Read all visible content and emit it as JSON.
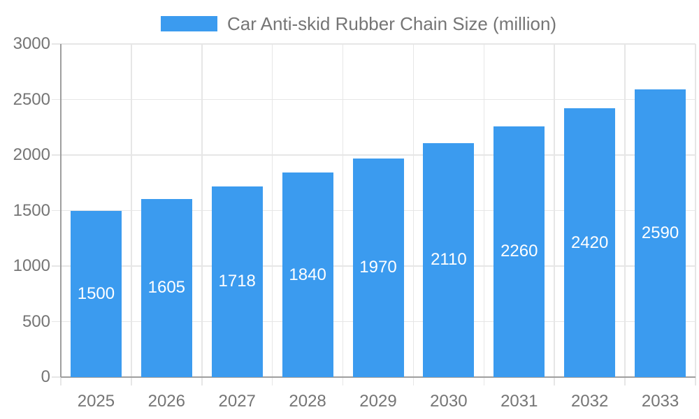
{
  "chart_data": {
    "type": "bar",
    "legend": "Car Anti-skid Rubber Chain Size (million)",
    "legend_position": "top-center",
    "categories": [
      "2025",
      "2026",
      "2027",
      "2028",
      "2029",
      "2030",
      "2031",
      "2032",
      "2033"
    ],
    "values": [
      1500,
      1605,
      1718,
      1840,
      1970,
      2110,
      2260,
      2420,
      2590
    ],
    "xlabel": "",
    "ylabel": "",
    "ylim": [
      0,
      3000
    ],
    "ytick_step": 500,
    "ytick_labels": [
      "0",
      "500",
      "1000",
      "1500",
      "2000",
      "2500",
      "3000"
    ],
    "grid": true,
    "bar_label_position": "inside-middle",
    "colors": {
      "bar": "#3B9BEF",
      "bar_label": "#FFFFFF",
      "axis_text": "#757575",
      "legend_text": "#757575",
      "gridline": "#E6E6E6",
      "tick": "#E6E6E6",
      "axis_line": "#9E9E9E",
      "background": "#FFFFFF"
    }
  }
}
